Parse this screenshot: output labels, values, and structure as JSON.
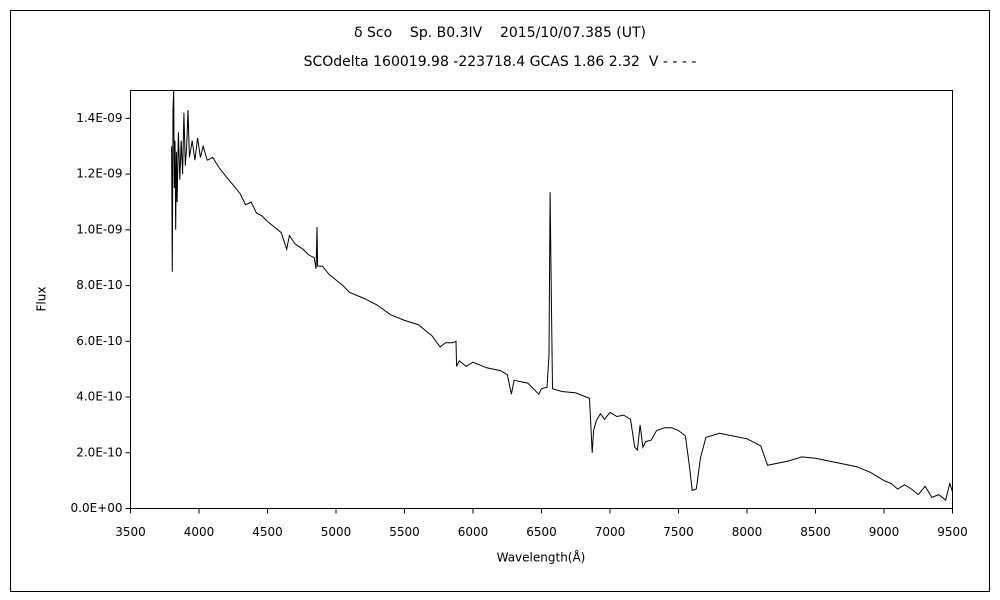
{
  "chart_data": {
    "type": "line",
    "title": "δ Sco    Sp. B0.3IV    2015/10/07.385 (UT)",
    "subtitle": "SCOdelta 160019.98 -223718.4 GCAS 1.86 2.32  V - - - -",
    "x_label": "Wavelength(Å)",
    "y_label": "Flux",
    "xlim": [
      3500,
      9500
    ],
    "xticks": [
      3500,
      4000,
      4500,
      5000,
      5500,
      6000,
      6500,
      7000,
      7500,
      8000,
      8500,
      9000,
      9500
    ],
    "ylim": [
      0,
      1.5e-09
    ],
    "yticks": [
      {
        "value": 0,
        "label": "0.0E+00"
      },
      {
        "value": 2e-10,
        "label": "2.0E-10"
      },
      {
        "value": 4e-10,
        "label": "4.0E-10"
      },
      {
        "value": 6e-10,
        "label": "6.0E-10"
      },
      {
        "value": 8e-10,
        "label": "8.0E-10"
      },
      {
        "value": 1e-09,
        "label": "1.0E-09"
      },
      {
        "value": 1.2e-09,
        "label": "1.2E-09"
      },
      {
        "value": 1.4e-09,
        "label": "1.4E-09"
      }
    ],
    "grid": false,
    "series": [
      {
        "color": "#000000",
        "x": [
          3800,
          3805,
          3810,
          3815,
          3820,
          3825,
          3830,
          3835,
          3840,
          3850,
          3860,
          3870,
          3880,
          3890,
          3900,
          3910,
          3920,
          3930,
          3950,
          3970,
          3990,
          4010,
          4030,
          4060,
          4100,
          4150,
          4200,
          4250,
          4300,
          4340,
          4380,
          4420,
          4460,
          4500,
          4550,
          4600,
          4640,
          4660,
          4700,
          4760,
          4800,
          4840,
          4855,
          4861,
          4866,
          4900,
          4950,
          5000,
          5050,
          5100,
          5200,
          5300,
          5400,
          5500,
          5600,
          5700,
          5760,
          5800,
          5850,
          5876,
          5880,
          5900,
          5950,
          6000,
          6100,
          6200,
          6250,
          6280,
          6300,
          6400,
          6480,
          6500,
          6540,
          6555,
          6563,
          6570,
          6580,
          6650,
          6750,
          6850,
          6870,
          6880,
          6900,
          6930,
          6960,
          7000,
          7050,
          7100,
          7150,
          7180,
          7200,
          7220,
          7240,
          7260,
          7300,
          7340,
          7400,
          7450,
          7500,
          7550,
          7580,
          7600,
          7630,
          7660,
          7700,
          7800,
          7900,
          8000,
          8100,
          8150,
          8200,
          8300,
          8400,
          8500,
          8600,
          8700,
          8800,
          8900,
          9000,
          9050,
          9100,
          9150,
          9200,
          9250,
          9300,
          9350,
          9400,
          9450,
          9480,
          9500
        ],
        "values": [
          1.3e-09,
          8.5e-10,
          1.43e-09,
          1.5e-09,
          1.15e-09,
          1.32e-09,
          1e-09,
          1.28e-09,
          1.1e-09,
          1.35e-09,
          1.18e-09,
          1.32e-09,
          1.2e-09,
          1.42e-09,
          1.23e-09,
          1.3e-09,
          1.43e-09,
          1.26e-09,
          1.32e-09,
          1.25e-09,
          1.33e-09,
          1.26e-09,
          1.3e-09,
          1.25e-09,
          1.26e-09,
          1.22e-09,
          1.19e-09,
          1.16e-09,
          1.13e-09,
          1.09e-09,
          1.1e-09,
          1.06e-09,
          1.05e-09,
          1.03e-09,
          1.01e-09,
          9.9e-10,
          9.3e-10,
          9.8e-10,
          9.5e-10,
          9.3e-10,
          9.1e-10,
          9e-10,
          8.6e-10,
          1.01e-09,
          8.7e-10,
          8.7e-10,
          8.4e-10,
          8.2e-10,
          8e-10,
          7.75e-10,
          7.55e-10,
          7.3e-10,
          6.95e-10,
          6.75e-10,
          6.6e-10,
          6.2e-10,
          5.8e-10,
          5.95e-10,
          5.95e-10,
          6e-10,
          5.1e-10,
          5.3e-10,
          5.1e-10,
          5.25e-10,
          5.05e-10,
          4.95e-10,
          4.8e-10,
          4.1e-10,
          4.6e-10,
          4.5e-10,
          4.1e-10,
          4.3e-10,
          4.35e-10,
          5.5e-10,
          1.135e-09,
          8.3e-10,
          4.3e-10,
          4.2e-10,
          4.15e-10,
          3.95e-10,
          2e-10,
          2.8e-10,
          3.15e-10,
          3.4e-10,
          3.2e-10,
          3.45e-10,
          3.3e-10,
          3.35e-10,
          3.2e-10,
          2.2e-10,
          2.1e-10,
          3e-10,
          2.2e-10,
          2.4e-10,
          2.45e-10,
          2.8e-10,
          2.9e-10,
          2.9e-10,
          2.8e-10,
          2.6e-10,
          1.5e-10,
          6.5e-11,
          7e-11,
          1.8e-10,
          2.55e-10,
          2.7e-10,
          2.6e-10,
          2.5e-10,
          2.25e-10,
          1.55e-10,
          1.6e-10,
          1.7e-10,
          1.85e-10,
          1.8e-10,
          1.7e-10,
          1.6e-10,
          1.5e-10,
          1.3e-10,
          1e-10,
          9e-11,
          7e-11,
          8.5e-11,
          7e-11,
          5e-11,
          8e-11,
          4e-11,
          5e-11,
          3e-11,
          9e-11,
          6e-11
        ]
      }
    ]
  }
}
